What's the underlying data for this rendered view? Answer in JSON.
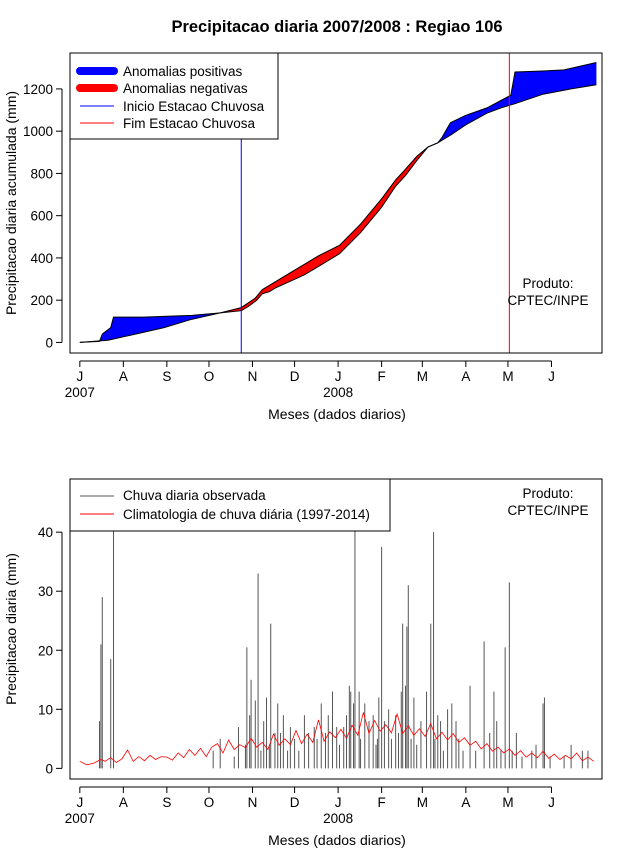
{
  "title": "Precipitacao diaria 2007/2008 : Regiao 106",
  "colors": {
    "positive": "#0000ff",
    "negative": "#ff0000",
    "observed": "#555555",
    "climatology": "#ff0000",
    "start_line": "#0000ff",
    "end_line": "#ff0000",
    "axis": "#000000"
  },
  "chart_data": [
    {
      "type": "area",
      "title": "Precipitacao diaria 2007/2008 : Regiao 106",
      "xlabel": "Meses (dados diarios)",
      "ylabel": "Precipitacao diaria acumulada (mm)",
      "x_unit": "day index (0 = 1 Jul 2007)",
      "xlim": [
        -7,
        372
      ],
      "ylim": [
        -50,
        1370
      ],
      "yticks": [
        0,
        200,
        400,
        600,
        800,
        1000,
        1200
      ],
      "month_ticks": [
        {
          "label": "J",
          "day": 0
        },
        {
          "label": "A",
          "day": 31
        },
        {
          "label": "S",
          "day": 62
        },
        {
          "label": "O",
          "day": 92
        },
        {
          "label": "N",
          "day": 123
        },
        {
          "label": "D",
          "day": 153
        },
        {
          "label": "J",
          "day": 184
        },
        {
          "label": "F",
          "day": 215
        },
        {
          "label": "M",
          "day": 244
        },
        {
          "label": "A",
          "day": 275
        },
        {
          "label": "M",
          "day": 305
        },
        {
          "label": "J",
          "day": 336
        }
      ],
      "year_labels": [
        {
          "label": "2007",
          "day": 0
        },
        {
          "label": "2008",
          "day": 184
        }
      ],
      "observed_cumulative": [
        [
          0,
          0
        ],
        [
          14,
          5
        ],
        [
          16,
          40
        ],
        [
          22,
          70
        ],
        [
          24,
          120
        ],
        [
          45,
          120
        ],
        [
          80,
          128
        ],
        [
          100,
          140
        ],
        [
          115,
          150
        ],
        [
          120,
          170
        ],
        [
          126,
          200
        ],
        [
          130,
          230
        ],
        [
          135,
          240
        ],
        [
          140,
          260
        ],
        [
          150,
          290
        ],
        [
          160,
          320
        ],
        [
          170,
          360
        ],
        [
          185,
          420
        ],
        [
          200,
          520
        ],
        [
          215,
          640
        ],
        [
          225,
          740
        ],
        [
          232,
          790
        ],
        [
          240,
          860
        ],
        [
          248,
          925
        ],
        [
          255,
          945
        ],
        [
          258,
          970
        ],
        [
          264,
          1040
        ],
        [
          275,
          1075
        ],
        [
          290,
          1110
        ],
        [
          300,
          1145
        ],
        [
          307,
          1170
        ],
        [
          310,
          1280
        ],
        [
          330,
          1285
        ],
        [
          345,
          1290
        ],
        [
          368,
          1325
        ]
      ],
      "climatology_cumulative": [
        [
          0,
          0
        ],
        [
          20,
          10
        ],
        [
          40,
          40
        ],
        [
          60,
          70
        ],
        [
          80,
          110
        ],
        [
          100,
          140
        ],
        [
          115,
          165
        ],
        [
          125,
          210
        ],
        [
          130,
          250
        ],
        [
          140,
          290
        ],
        [
          150,
          330
        ],
        [
          160,
          370
        ],
        [
          170,
          410
        ],
        [
          185,
          460
        ],
        [
          200,
          560
        ],
        [
          215,
          680
        ],
        [
          225,
          770
        ],
        [
          232,
          820
        ],
        [
          240,
          880
        ],
        [
          248,
          925
        ],
        [
          255,
          945
        ],
        [
          265,
          985
        ],
        [
          275,
          1030
        ],
        [
          290,
          1085
        ],
        [
          300,
          1110
        ],
        [
          310,
          1130
        ],
        [
          330,
          1175
        ],
        [
          350,
          1200
        ],
        [
          368,
          1220
        ]
      ],
      "rainy_season_start_day": 115,
      "rainy_season_end_day": 306,
      "legend": {
        "position": "top-left",
        "entries": [
          "Anomalias positivas",
          "Anomalias negativas",
          "Inicio Estacao Chuvosa",
          "Fim Estacao Chuvosa"
        ]
      },
      "annotation": [
        "Produto:",
        "CPTEC/INPE"
      ]
    },
    {
      "type": "bar",
      "title": "",
      "xlabel": "Meses (dados diarios)",
      "ylabel": "Precipitacao diaria (mm)",
      "x_unit": "day index (0 = 1 Jul 2007)",
      "xlim": [
        -7,
        372
      ],
      "ylim": [
        -1.8,
        49
      ],
      "yticks": [
        0,
        10,
        20,
        30,
        40
      ],
      "month_ticks": [
        {
          "label": "J",
          "day": 0
        },
        {
          "label": "A",
          "day": 31
        },
        {
          "label": "S",
          "day": 62
        },
        {
          "label": "O",
          "day": 92
        },
        {
          "label": "N",
          "day": 123
        },
        {
          "label": "D",
          "day": 153
        },
        {
          "label": "J",
          "day": 184
        },
        {
          "label": "F",
          "day": 215
        },
        {
          "label": "M",
          "day": 244
        },
        {
          "label": "A",
          "day": 275
        },
        {
          "label": "M",
          "day": 305
        },
        {
          "label": "J",
          "day": 336
        }
      ],
      "year_labels": [
        {
          "label": "2007",
          "day": 0
        },
        {
          "label": "2008",
          "day": 184
        }
      ],
      "observed_daily": [
        [
          14,
          8
        ],
        [
          15,
          21
        ],
        [
          16,
          29
        ],
        [
          22,
          18.5
        ],
        [
          24,
          60
        ],
        [
          95,
          3
        ],
        [
          100,
          5
        ],
        [
          110,
          2
        ],
        [
          113,
          7
        ],
        [
          118,
          4
        ],
        [
          119,
          20.5
        ],
        [
          121,
          9
        ],
        [
          122,
          15
        ],
        [
          125,
          11.5
        ],
        [
          127,
          33
        ],
        [
          129,
          3
        ],
        [
          131,
          8
        ],
        [
          133,
          12
        ],
        [
          135,
          4
        ],
        [
          136,
          24.5
        ],
        [
          139,
          6
        ],
        [
          141,
          11
        ],
        [
          143,
          6
        ],
        [
          145,
          9
        ],
        [
          148,
          3
        ],
        [
          150,
          7
        ],
        [
          153,
          5
        ],
        [
          156,
          3
        ],
        [
          160,
          9
        ],
        [
          163,
          6
        ],
        [
          167,
          7
        ],
        [
          169,
          5
        ],
        [
          172,
          11
        ],
        [
          175,
          6
        ],
        [
          177,
          9
        ],
        [
          180,
          13
        ],
        [
          183,
          7
        ],
        [
          185,
          4
        ],
        [
          188,
          7
        ],
        [
          190,
          9
        ],
        [
          192,
          14
        ],
        [
          193,
          13
        ],
        [
          195,
          11
        ],
        [
          196,
          41
        ],
        [
          199,
          13
        ],
        [
          200,
          5
        ],
        [
          203,
          11
        ],
        [
          206,
          8
        ],
        [
          209,
          9
        ],
        [
          211,
          4
        ],
        [
          212,
          5
        ],
        [
          213,
          12
        ],
        [
          215,
          37.5
        ],
        [
          217,
          8
        ],
        [
          220,
          10
        ],
        [
          222,
          5
        ],
        [
          225,
          9
        ],
        [
          227,
          6
        ],
        [
          229,
          13
        ],
        [
          230,
          24.5
        ],
        [
          232,
          14
        ],
        [
          233,
          24
        ],
        [
          234,
          31
        ],
        [
          236,
          5
        ],
        [
          238,
          12
        ],
        [
          240,
          4
        ],
        [
          243,
          8
        ],
        [
          247,
          13
        ],
        [
          250,
          24.5
        ],
        [
          252,
          40
        ],
        [
          253,
          5
        ],
        [
          255,
          9
        ],
        [
          257,
          8
        ],
        [
          259,
          3
        ],
        [
          262,
          10
        ],
        [
          265,
          11
        ],
        [
          268,
          8
        ],
        [
          270,
          5
        ],
        [
          273,
          3
        ],
        [
          278,
          14
        ],
        [
          282,
          3
        ],
        [
          288,
          21.5
        ],
        [
          292,
          6
        ],
        [
          295,
          13
        ],
        [
          297,
          8
        ],
        [
          300,
          3
        ],
        [
          303,
          20.5
        ],
        [
          306,
          31.5
        ],
        [
          308,
          3
        ],
        [
          311,
          6
        ],
        [
          315,
          2
        ],
        [
          322,
          3
        ],
        [
          325,
          4
        ],
        [
          330,
          11
        ],
        [
          331,
          12
        ],
        [
          335,
          2
        ],
        [
          345,
          2
        ],
        [
          350,
          4
        ],
        [
          358,
          3
        ],
        [
          362,
          3
        ]
      ],
      "climatology_daily": [
        [
          0,
          1.2
        ],
        [
          5,
          0.6
        ],
        [
          10,
          0.9
        ],
        [
          15,
          1.5
        ],
        [
          18,
          1.2
        ],
        [
          22,
          1.8
        ],
        [
          26,
          1.0
        ],
        [
          30,
          1.6
        ],
        [
          34,
          3.1
        ],
        [
          38,
          1.2
        ],
        [
          42,
          2.0
        ],
        [
          46,
          1.3
        ],
        [
          50,
          2.2
        ],
        [
          54,
          1.5
        ],
        [
          58,
          2.0
        ],
        [
          62,
          1.9
        ],
        [
          66,
          1.4
        ],
        [
          70,
          2.6
        ],
        [
          74,
          1.8
        ],
        [
          78,
          3.2
        ],
        [
          82,
          2.2
        ],
        [
          86,
          3.4
        ],
        [
          90,
          2.0
        ],
        [
          94,
          3.6
        ],
        [
          98,
          4.2
        ],
        [
          102,
          2.6
        ],
        [
          106,
          4.8
        ],
        [
          110,
          3.2
        ],
        [
          114,
          4.0
        ],
        [
          118,
          3.5
        ],
        [
          122,
          5.1
        ],
        [
          126,
          3.6
        ],
        [
          130,
          4.4
        ],
        [
          134,
          3.2
        ],
        [
          138,
          5.8
        ],
        [
          142,
          3.9
        ],
        [
          146,
          5.0
        ],
        [
          150,
          4.0
        ],
        [
          154,
          6.4
        ],
        [
          158,
          4.2
        ],
        [
          162,
          5.8
        ],
        [
          166,
          4.4
        ],
        [
          170,
          8.2
        ],
        [
          174,
          4.6
        ],
        [
          178,
          6.2
        ],
        [
          182,
          5.2
        ],
        [
          186,
          6.6
        ],
        [
          190,
          5.1
        ],
        [
          194,
          7.3
        ],
        [
          198,
          5.6
        ],
        [
          202,
          9.5
        ],
        [
          206,
          5.9
        ],
        [
          210,
          8.1
        ],
        [
          214,
          6.3
        ],
        [
          218,
          7.4
        ],
        [
          222,
          6.0
        ],
        [
          226,
          9.2
        ],
        [
          230,
          5.9
        ],
        [
          234,
          7.2
        ],
        [
          238,
          5.6
        ],
        [
          242,
          6.7
        ],
        [
          246,
          5.4
        ],
        [
          250,
          7.6
        ],
        [
          254,
          5.0
        ],
        [
          258,
          6.1
        ],
        [
          262,
          4.8
        ],
        [
          266,
          5.9
        ],
        [
          270,
          4.4
        ],
        [
          274,
          5.2
        ],
        [
          278,
          3.9
        ],
        [
          282,
          4.6
        ],
        [
          286,
          3.3
        ],
        [
          290,
          4.2
        ],
        [
          294,
          2.9
        ],
        [
          298,
          3.6
        ],
        [
          302,
          2.6
        ],
        [
          306,
          3.3
        ],
        [
          310,
          2.2
        ],
        [
          314,
          3.0
        ],
        [
          318,
          1.9
        ],
        [
          322,
          2.6
        ],
        [
          326,
          1.8
        ],
        [
          330,
          2.9
        ],
        [
          334,
          1.7
        ],
        [
          338,
          2.4
        ],
        [
          342,
          1.5
        ],
        [
          346,
          2.2
        ],
        [
          350,
          1.6
        ],
        [
          354,
          2.6
        ],
        [
          358,
          1.3
        ],
        [
          362,
          1.9
        ],
        [
          366,
          1.2
        ]
      ],
      "legend": {
        "position": "top-left",
        "entries": [
          "Chuva diaria observada",
          "Climatologia de chuva diária (1997-2014)"
        ]
      },
      "annotation": [
        "Produto:",
        "CPTEC/INPE"
      ]
    }
  ]
}
